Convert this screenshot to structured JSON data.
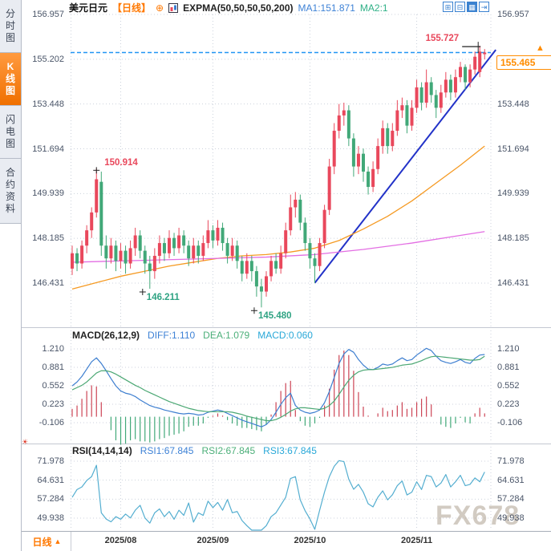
{
  "sidebar": {
    "tabs": [
      {
        "name": "sidebar-tab-time-share-chart",
        "label": "分时图",
        "active": false
      },
      {
        "name": "sidebar-tab-kline-chart",
        "label": "K线图",
        "active": true
      },
      {
        "name": "sidebar-tab-lightning-chart",
        "label": "闪电图",
        "active": false
      },
      {
        "name": "sidebar-tab-contract-info",
        "label": "合约资料",
        "active": false
      }
    ]
  },
  "header": {
    "symbol": "美元日元",
    "period_tag": "【日线】",
    "add_icon": "⊕",
    "indicator_label": "EXPMA(50,50,50,50,200)",
    "ma1": "MA1:151.871",
    "ma2": "MA2:1",
    "toolbar": [
      {
        "name": "crosshair-icon",
        "glyph": "⊞",
        "active": false
      },
      {
        "name": "fit-chart-icon",
        "glyph": "⊟",
        "active": false
      },
      {
        "name": "zoom-chart-icon",
        "glyph": "▦",
        "active": true
      },
      {
        "name": "pan-right-icon",
        "glyph": "⇥",
        "active": false
      }
    ]
  },
  "price_box": {
    "value": "155.465",
    "arrow": "▲"
  },
  "settings_icon_glyph": "☀",
  "watermark": "FX678",
  "bottom_bar": {
    "period_label": "日线",
    "period_arrow": "▲"
  },
  "colors": {
    "up": "#e9485c",
    "down": "#41a878",
    "accent_orange": "#ff7800",
    "price_orange": "#ff8c00",
    "ma_orange": "#f59a23",
    "ma_magenta": "#e36ee3",
    "trend_blue": "#2232c8",
    "dash_blue": "#2196f3",
    "diff_blue": "#3e7fd0",
    "dea_green": "#4ca874",
    "macd_cyan": "#29a8d8",
    "rsi_blue": "#54aed0",
    "axis_text": "#4a5568",
    "grid": "#ccd2dc",
    "marker_black": "#222222",
    "anno_red": "#e9485c",
    "anno_green": "#2fa383"
  },
  "chart_data": {
    "type": "candlestick",
    "title": "美元日元 日线 (USD/JPY Daily)",
    "legend": [
      "EXPMA(50,50,50,50,200)",
      "MA1:151.871",
      "MA2:1"
    ],
    "x_ticks": [
      {
        "i": 10,
        "label": "2025/08"
      },
      {
        "i": 29,
        "label": "2025/09"
      },
      {
        "i": 49,
        "label": "2025/10"
      },
      {
        "i": 71,
        "label": "2025/11"
      }
    ],
    "main_panel": {
      "y_axis_labels": [
        "156.957",
        "155.202",
        "153.448",
        "151.694",
        "149.939",
        "148.185",
        "146.431"
      ],
      "y_axis_range": [
        156.957,
        146.431
      ],
      "current_price": 155.465,
      "candles_ohlc": [
        [
          147.0,
          147.9,
          146.75,
          147.6
        ],
        [
          147.6,
          147.8,
          146.9,
          147.2
        ],
        [
          147.2,
          148.1,
          147.0,
          147.9
        ],
        [
          147.9,
          148.7,
          147.6,
          148.5
        ],
        [
          148.5,
          149.4,
          148.2,
          149.2
        ],
        [
          149.2,
          150.914,
          149.0,
          150.5
        ],
        [
          150.4,
          150.8,
          147.5,
          147.9
        ],
        [
          147.9,
          148.3,
          147.0,
          147.4
        ],
        [
          147.4,
          148.2,
          147.2,
          147.9
        ],
        [
          147.9,
          148.1,
          146.9,
          147.3
        ],
        [
          147.3,
          148.0,
          147.0,
          147.7
        ],
        [
          147.7,
          147.9,
          146.8,
          147.2
        ],
        [
          147.2,
          148.1,
          147.0,
          147.8
        ],
        [
          147.8,
          148.6,
          147.5,
          148.3
        ],
        [
          148.3,
          148.5,
          147.4,
          147.7
        ],
        [
          147.7,
          147.9,
          146.8,
          147.2
        ],
        [
          147.2,
          147.5,
          146.211,
          146.9
        ],
        [
          146.9,
          147.8,
          146.6,
          147.5
        ],
        [
          147.5,
          148.3,
          147.2,
          148.0
        ],
        [
          148.0,
          148.2,
          147.3,
          147.6
        ],
        [
          147.6,
          148.5,
          147.4,
          148.2
        ],
        [
          148.2,
          148.4,
          147.5,
          147.8
        ],
        [
          147.8,
          148.6,
          147.6,
          148.3
        ],
        [
          148.3,
          148.5,
          147.6,
          147.9
        ],
        [
          147.9,
          148.1,
          147.1,
          147.4
        ],
        [
          147.4,
          148.2,
          147.2,
          147.9
        ],
        [
          147.9,
          148.1,
          147.2,
          147.5
        ],
        [
          147.5,
          148.3,
          147.3,
          148.0
        ],
        [
          148.0,
          148.9,
          147.8,
          148.5
        ],
        [
          148.5,
          148.7,
          147.8,
          148.1
        ],
        [
          148.1,
          148.9,
          147.9,
          148.6
        ],
        [
          148.6,
          148.8,
          147.7,
          148.0
        ],
        [
          148.0,
          148.2,
          147.2,
          147.5
        ],
        [
          147.5,
          148.2,
          147.3,
          147.9
        ],
        [
          147.9,
          148.1,
          147.0,
          147.3
        ],
        [
          147.3,
          147.5,
          146.5,
          146.8
        ],
        [
          146.8,
          147.6,
          146.6,
          147.3
        ],
        [
          147.3,
          147.5,
          146.5,
          146.9
        ],
        [
          146.9,
          147.1,
          145.9,
          146.3
        ],
        [
          146.3,
          146.6,
          145.48,
          146.1
        ],
        [
          146.1,
          146.9,
          145.9,
          146.7
        ],
        [
          146.7,
          147.5,
          146.5,
          147.3
        ],
        [
          147.3,
          147.6,
          146.8,
          147.0
        ],
        [
          147.0,
          147.9,
          146.8,
          147.6
        ],
        [
          147.6,
          148.8,
          147.4,
          148.5
        ],
        [
          148.5,
          149.9,
          148.3,
          149.4
        ],
        [
          149.4,
          150.0,
          149.0,
          149.7
        ],
        [
          149.7,
          149.9,
          148.5,
          148.8
        ],
        [
          148.8,
          149.0,
          147.7,
          148.0
        ],
        [
          148.0,
          148.2,
          147.0,
          147.4
        ],
        [
          147.4,
          147.6,
          146.44,
          147.1
        ],
        [
          147.1,
          148.2,
          146.9,
          148.0
        ],
        [
          148.0,
          149.5,
          147.8,
          149.3
        ],
        [
          149.3,
          151.3,
          149.1,
          151.0
        ],
        [
          151.0,
          152.7,
          150.7,
          152.4
        ],
        [
          152.4,
          153.45,
          152.1,
          153.0
        ],
        [
          153.0,
          153.5,
          152.6,
          153.2
        ],
        [
          153.2,
          153.4,
          151.8,
          152.1
        ],
        [
          152.1,
          152.3,
          150.6,
          151.0
        ],
        [
          151.0,
          151.8,
          150.7,
          151.5
        ],
        [
          151.5,
          151.7,
          150.4,
          150.8
        ],
        [
          150.8,
          151.0,
          149.9,
          150.2
        ],
        [
          150.2,
          151.2,
          150.0,
          150.9
        ],
        [
          150.9,
          152.1,
          150.7,
          151.8
        ],
        [
          151.8,
          152.8,
          151.5,
          152.5
        ],
        [
          152.5,
          152.7,
          151.5,
          151.8
        ],
        [
          151.8,
          152.7,
          151.6,
          152.4
        ],
        [
          152.4,
          153.6,
          152.2,
          153.2
        ],
        [
          153.2,
          153.7,
          152.9,
          153.4
        ],
        [
          153.4,
          153.6,
          152.3,
          152.6
        ],
        [
          152.6,
          153.6,
          152.4,
          153.3
        ],
        [
          153.3,
          154.4,
          153.1,
          154.1
        ],
        [
          154.1,
          154.3,
          153.2,
          153.5
        ],
        [
          153.5,
          154.8,
          153.3,
          154.3
        ],
        [
          154.3,
          154.5,
          153.5,
          153.8
        ],
        [
          153.8,
          154.0,
          152.9,
          153.3
        ],
        [
          153.3,
          154.2,
          153.1,
          153.9
        ],
        [
          153.9,
          154.7,
          153.7,
          154.4
        ],
        [
          154.4,
          154.6,
          153.6,
          153.9
        ],
        [
          153.9,
          154.8,
          153.7,
          154.5
        ],
        [
          154.5,
          155.1,
          154.3,
          154.9
        ],
        [
          154.9,
          155.0,
          154.0,
          154.3
        ],
        [
          154.3,
          155.0,
          154.1,
          154.8
        ],
        [
          154.8,
          155.5,
          154.6,
          155.3
        ],
        [
          154.7,
          155.727,
          154.5,
          155.5
        ],
        [
          155.4,
          155.6,
          155.2,
          155.465
        ]
      ],
      "ma_orange_points": [
        [
          0,
          146.2
        ],
        [
          5,
          146.45
        ],
        [
          10,
          146.7
        ],
        [
          15,
          146.9
        ],
        [
          20,
          147.1
        ],
        [
          25,
          147.25
        ],
        [
          30,
          147.4
        ],
        [
          35,
          147.5
        ],
        [
          40,
          147.55
        ],
        [
          45,
          147.65
        ],
        [
          50,
          147.8
        ],
        [
          55,
          148.1
        ],
        [
          60,
          148.55
        ],
        [
          65,
          149.05
        ],
        [
          70,
          149.65
        ],
        [
          75,
          150.35
        ],
        [
          80,
          151.05
        ],
        [
          85,
          151.8
        ]
      ],
      "ma_magenta_points": [
        [
          0,
          147.25
        ],
        [
          10,
          147.3
        ],
        [
          20,
          147.35
        ],
        [
          30,
          147.4
        ],
        [
          40,
          147.45
        ],
        [
          50,
          147.55
        ],
        [
          60,
          147.75
        ],
        [
          70,
          148.0
        ],
        [
          80,
          148.3
        ],
        [
          85,
          148.45
        ]
      ],
      "trendline": {
        "from": [
          50,
          146.44
        ],
        "to": [
          87.3,
          155.57
        ]
      },
      "annotations": [
        {
          "i": 5,
          "price": 150.914,
          "text": "150.914",
          "type": "high",
          "color": "#e9485c"
        },
        {
          "i": 16,
          "price": 146.211,
          "text": "146.211",
          "type": "low",
          "color": "#2fa383"
        },
        {
          "i": 39,
          "price": 145.48,
          "text": "145.480",
          "type": "low",
          "color": "#2fa383"
        },
        {
          "i": 84,
          "price": 155.727,
          "text": "155.727",
          "type": "session-high",
          "color": "#e9485c"
        }
      ]
    },
    "macd_panel": {
      "label": "MACD(26,12,9)",
      "diff_label": "DIFF:1.110",
      "dea_label": "DEA:1.079",
      "macd_label": "MACD:0.060",
      "y_axis_labels": [
        "1.210",
        "0.881",
        "0.552",
        "0.223",
        "-0.106"
      ],
      "y_axis_range": [
        1.21,
        -0.106
      ],
      "histogram_rule": "2*(DIFF-DEA)",
      "diff": [
        0.55,
        0.62,
        0.72,
        0.85,
        0.98,
        1.05,
        0.95,
        0.82,
        0.68,
        0.55,
        0.46,
        0.42,
        0.4,
        0.36,
        0.3,
        0.25,
        0.2,
        0.17,
        0.15,
        0.12,
        0.1,
        0.08,
        0.06,
        0.05,
        0.06,
        0.05,
        0.03,
        0.04,
        0.08,
        0.1,
        0.12,
        0.1,
        0.06,
        0.02,
        -0.02,
        -0.06,
        -0.09,
        -0.12,
        -0.15,
        -0.18,
        -0.14,
        -0.05,
        0.08,
        0.22,
        0.34,
        0.42,
        0.2,
        0.12,
        0.08,
        0.06,
        0.08,
        0.12,
        0.25,
        0.45,
        0.7,
        0.95,
        1.12,
        1.2,
        1.15,
        1.02,
        0.92,
        0.85,
        0.84,
        0.88,
        0.94,
        0.92,
        0.94,
        1.0,
        1.05,
        1.0,
        1.02,
        1.1,
        1.16,
        1.22,
        1.18,
        1.08,
        1.0,
        0.97,
        0.95,
        0.98,
        1.02,
        0.97,
        0.95,
        1.04,
        1.1,
        1.11
      ],
      "dea": [
        0.48,
        0.52,
        0.56,
        0.62,
        0.7,
        0.78,
        0.82,
        0.82,
        0.8,
        0.76,
        0.71,
        0.66,
        0.61,
        0.56,
        0.52,
        0.47,
        0.43,
        0.39,
        0.35,
        0.31,
        0.27,
        0.24,
        0.21,
        0.18,
        0.15,
        0.13,
        0.11,
        0.1,
        0.09,
        0.09,
        0.09,
        0.09,
        0.09,
        0.08,
        0.06,
        0.04,
        0.01,
        -0.01,
        -0.03,
        -0.05,
        -0.07,
        -0.07,
        -0.05,
        -0.01,
        0.04,
        0.1,
        0.14,
        0.16,
        0.16,
        0.15,
        0.14,
        0.13,
        0.15,
        0.2,
        0.28,
        0.4,
        0.53,
        0.65,
        0.74,
        0.8,
        0.83,
        0.84,
        0.84,
        0.85,
        0.86,
        0.87,
        0.88,
        0.9,
        0.92,
        0.93,
        0.94,
        0.97,
        1.0,
        1.04,
        1.07,
        1.08,
        1.07,
        1.06,
        1.05,
        1.04,
        1.03,
        1.02,
        1.01,
        1.01,
        1.02,
        1.08
      ]
    },
    "rsi_panel": {
      "label": "RSI(14,14,14)",
      "rsi1_label": "RSI1:67.845",
      "rsi2_label": "RSI2:67.845",
      "rsi3_label": "RSI3:67.845",
      "y_axis_labels": [
        "71.978",
        "64.631",
        "57.284",
        "49.938"
      ],
      "y_axis_range": [
        71.978,
        49.938
      ],
      "rsi": [
        58,
        61,
        62,
        64.5,
        66,
        70.4,
        52,
        49.6,
        48.5,
        50.5,
        49.5,
        51.5,
        50,
        53,
        54.9,
        50,
        48,
        52,
        53.5,
        50.5,
        52.5,
        49.5,
        53,
        51,
        55.8,
        48.4,
        52,
        51,
        56.5,
        54,
        56,
        53,
        57.1,
        52,
        52.5,
        49,
        47,
        43,
        45,
        43.2,
        47,
        50.5,
        52,
        55,
        58,
        65.3,
        66,
        57,
        52.8,
        49.6,
        45.6,
        53,
        60,
        66,
        70,
        72.2,
        71.8,
        65,
        61.1,
        63,
        60,
        55.5,
        54.3,
        58,
        60.5,
        57,
        59,
        62.5,
        64.3,
        58.9,
        60,
        64,
        61,
        66.5,
        66,
        62,
        63.5,
        66.8,
        62,
        64,
        66.5,
        62.5,
        63,
        65.5,
        64,
        67.8
      ]
    }
  }
}
